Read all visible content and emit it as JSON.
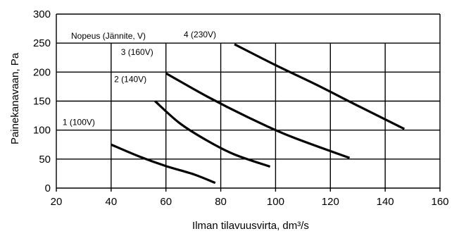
{
  "chart_data": {
    "type": "line",
    "xlabel": "Ilman tilavuusvirta, dm³/s",
    "ylabel": "Painekanavaan, Pa",
    "xlim": [
      20,
      160
    ],
    "ylim": [
      0,
      300
    ],
    "x_ticks": [
      20,
      40,
      60,
      80,
      100,
      120,
      140,
      160
    ],
    "y_ticks": [
      0,
      50,
      100,
      150,
      200,
      250,
      300
    ],
    "grid": "on",
    "legend": "none",
    "annotations": [
      "Nopeus (Jännite, V)"
    ],
    "series": [
      {
        "name": "1 (100V)",
        "x": [
          40,
          50,
          60,
          70,
          78
        ],
        "y": [
          75,
          55,
          38,
          24,
          9
        ]
      },
      {
        "name": "2 (140V)",
        "x": [
          56,
          65,
          75,
          85,
          98
        ],
        "y": [
          150,
          112,
          82,
          58,
          37
        ]
      },
      {
        "name": "3 (160V)",
        "x": [
          60,
          75,
          90,
          105,
          127
        ],
        "y": [
          198,
          158,
          122,
          90,
          52
        ]
      },
      {
        "name": "4 (230V)",
        "x": [
          85,
          100,
          115,
          130,
          147
        ],
        "y": [
          248,
          212,
          178,
          142,
          102
        ]
      }
    ]
  }
}
